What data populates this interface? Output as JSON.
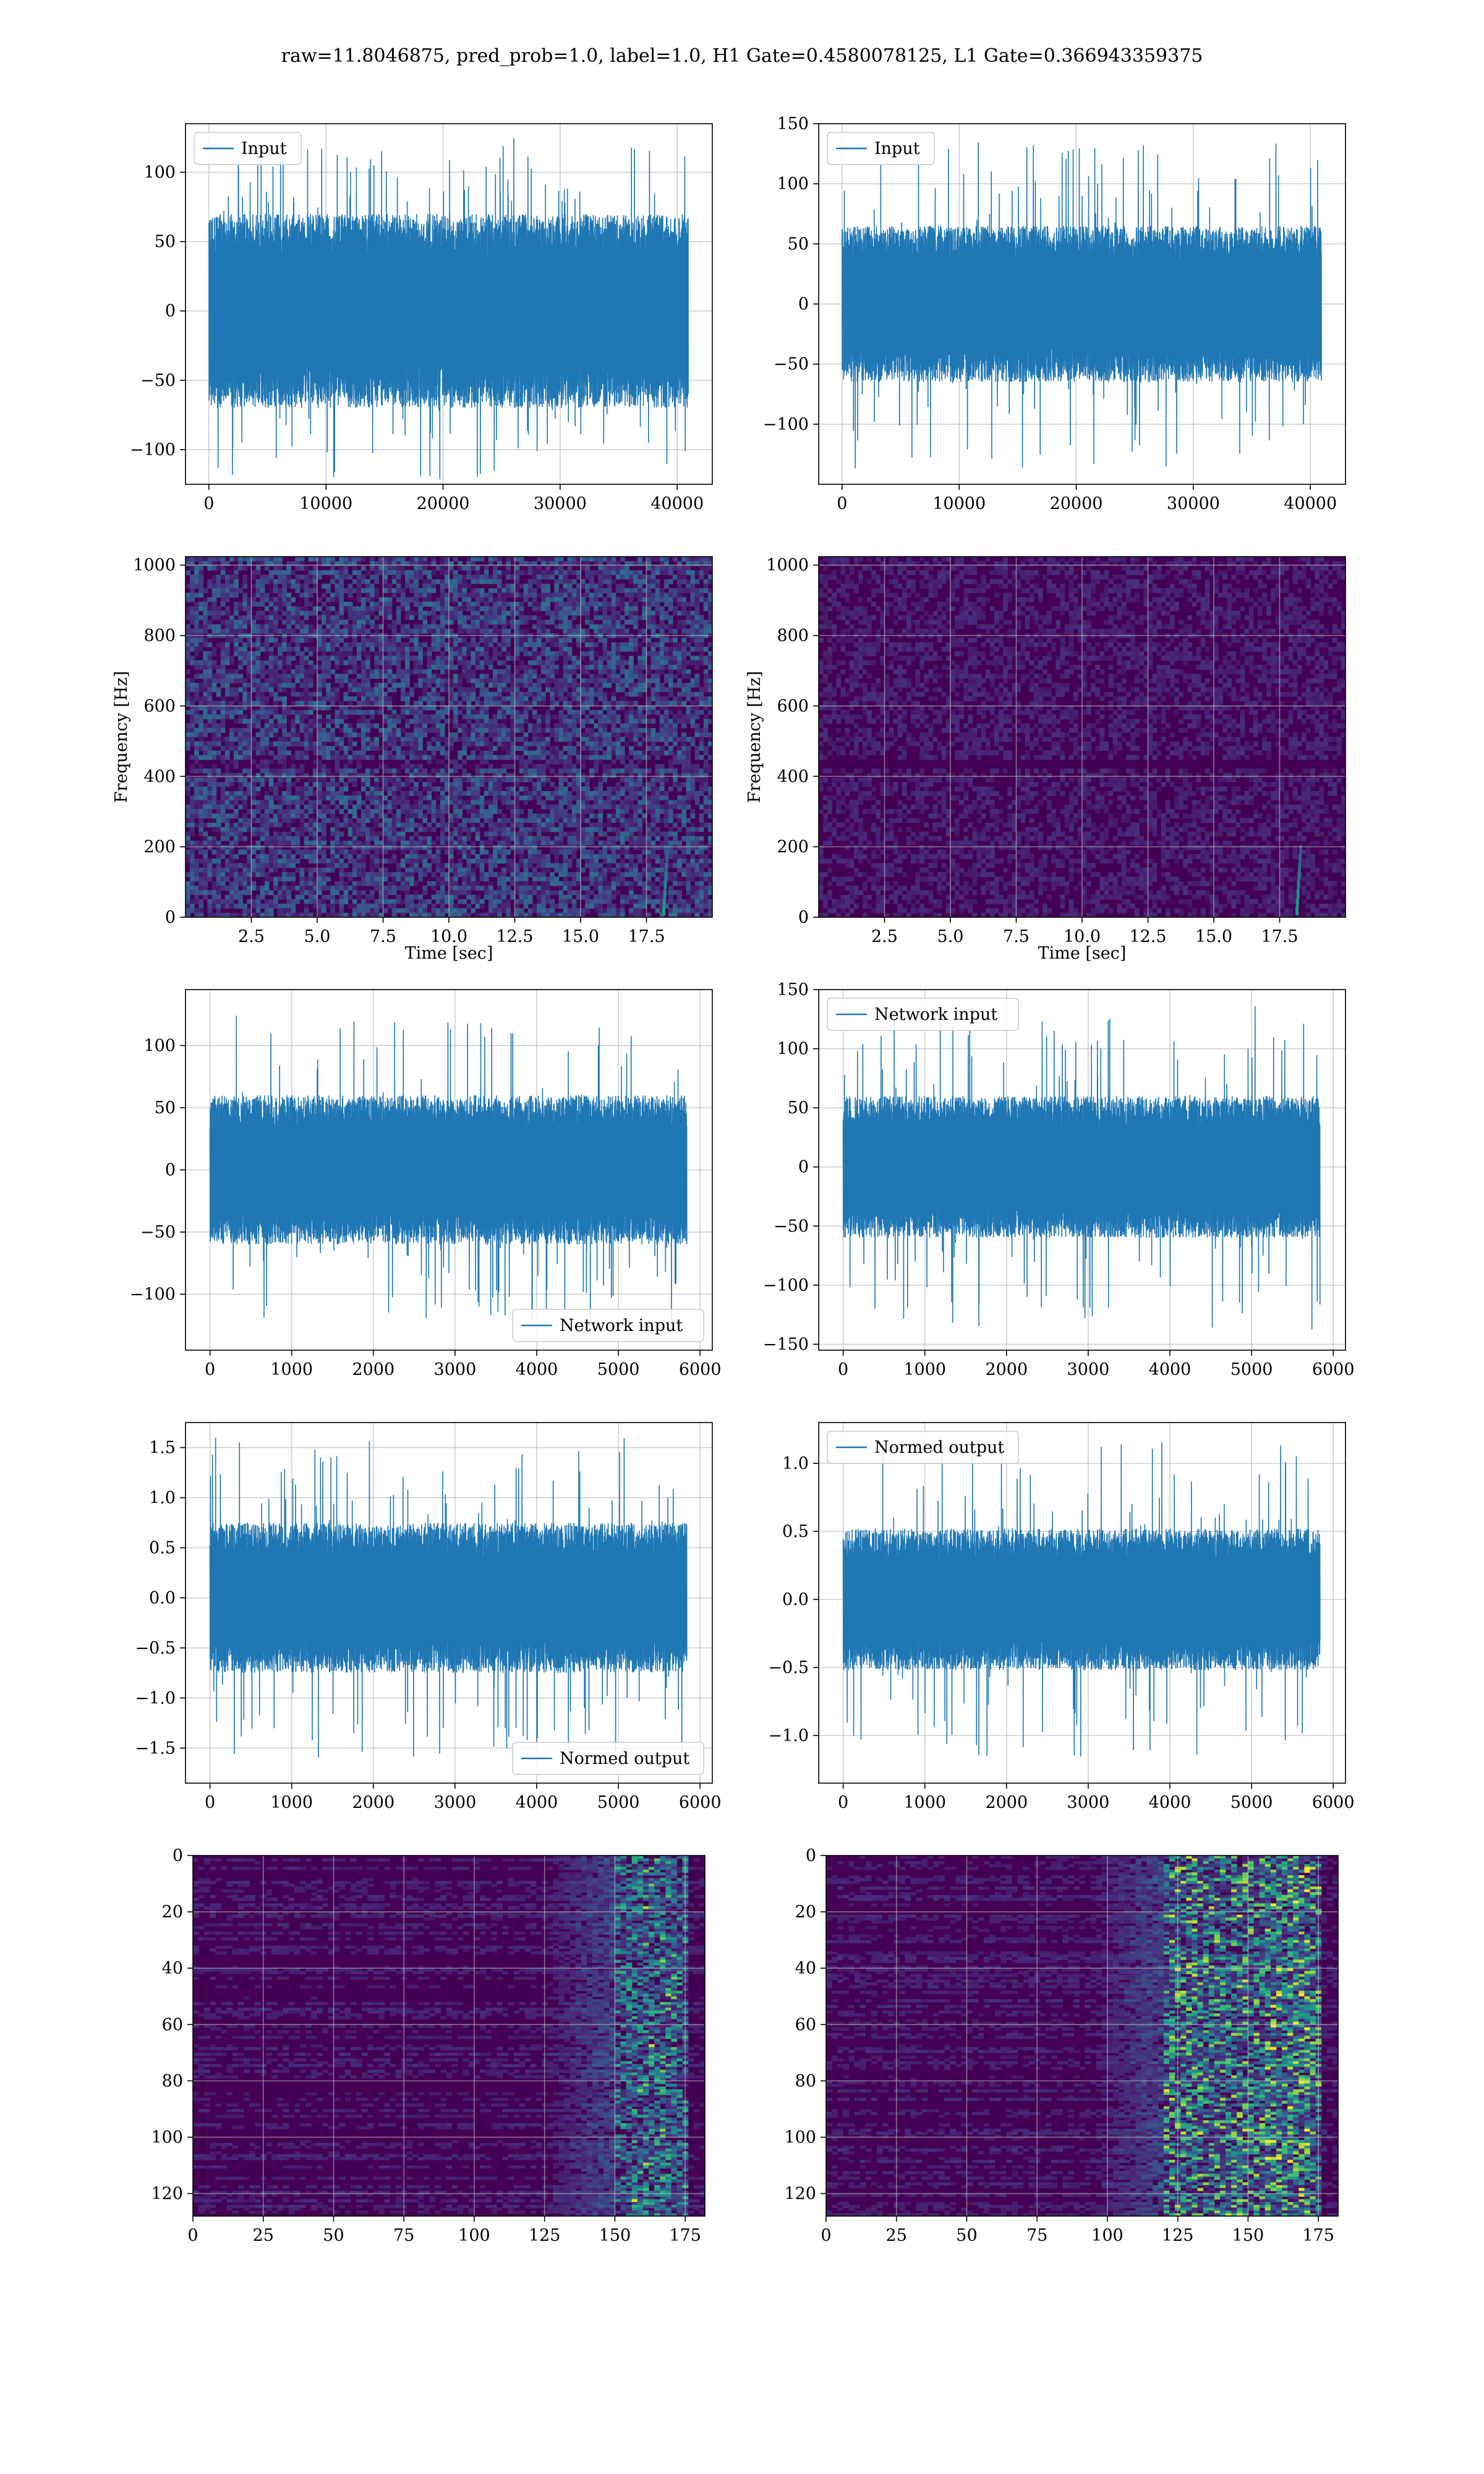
{
  "figure": {
    "title": "raw=11.8046875, pred_prob=1.0, label=1.0, H1 Gate=0.4580078125, L1 Gate=0.366943359375"
  },
  "colors": {
    "line": "#1f77b4",
    "grid": "#b0b0b0",
    "viridis_low": "#440154",
    "viridis_high": "#fde725"
  },
  "chart_data": [
    {
      "id": "input-h1",
      "type": "line",
      "series": [
        {
          "name": "Input",
          "n_points": 40960,
          "amplitude": 70,
          "peak": 125
        }
      ],
      "xlim": [
        -2000,
        43000
      ],
      "ylim": [
        -125,
        135
      ],
      "xticks": [
        0,
        10000,
        20000,
        30000,
        40000
      ],
      "yticks": [
        -100,
        -50,
        0,
        50,
        100
      ],
      "legend": "upper left",
      "grid": true
    },
    {
      "id": "input-l1",
      "type": "line",
      "series": [
        {
          "name": "Input",
          "n_points": 40960,
          "amplitude": 65,
          "peak": 138
        }
      ],
      "xlim": [
        -2000,
        43000
      ],
      "ylim": [
        -150,
        150
      ],
      "xticks": [
        0,
        10000,
        20000,
        30000,
        40000
      ],
      "yticks": [
        -100,
        -50,
        0,
        50,
        100,
        150
      ],
      "legend": "upper left",
      "grid": true
    },
    {
      "id": "spectrogram-h1",
      "type": "heatmap",
      "xlabel": "Time [sec]",
      "ylabel": "Frequency [Hz]",
      "xlim": [
        0,
        20
      ],
      "ylim": [
        0,
        1024
      ],
      "xticks": [
        2.5,
        5.0,
        7.5,
        10.0,
        12.5,
        15.0,
        17.5
      ],
      "yticks": [
        0,
        200,
        400,
        600,
        800,
        1000
      ],
      "colormap": "viridis",
      "intensity": 0.35,
      "grid": true
    },
    {
      "id": "spectrogram-l1",
      "type": "heatmap",
      "xlabel": "Time [sec]",
      "ylabel": "Frequency [Hz]",
      "xlim": [
        0,
        20
      ],
      "ylim": [
        0,
        1024
      ],
      "xticks": [
        2.5,
        5.0,
        7.5,
        10.0,
        12.5,
        15.0,
        17.5
      ],
      "yticks": [
        0,
        200,
        400,
        600,
        800,
        1000
      ],
      "colormap": "viridis",
      "intensity": 0.12,
      "grid": true
    },
    {
      "id": "network-input-h1",
      "type": "line",
      "series": [
        {
          "name": "Network input",
          "n_points": 5840,
          "amplitude": 60,
          "peak": 125
        }
      ],
      "xlim": [
        -300,
        6150
      ],
      "ylim": [
        -145,
        145
      ],
      "xticks": [
        0,
        1000,
        2000,
        3000,
        4000,
        5000,
        6000
      ],
      "yticks": [
        -100,
        -50,
        0,
        50,
        100
      ],
      "legend": "lower right",
      "grid": true
    },
    {
      "id": "network-input-l1",
      "type": "line",
      "series": [
        {
          "name": "Network input",
          "n_points": 5840,
          "amplitude": 60,
          "peak": 138
        }
      ],
      "xlim": [
        -300,
        6150
      ],
      "ylim": [
        -155,
        150
      ],
      "xticks": [
        0,
        1000,
        2000,
        3000,
        4000,
        5000,
        6000
      ],
      "yticks": [
        -150,
        -100,
        -50,
        0,
        50,
        100,
        150
      ],
      "legend": "upper left",
      "grid": true
    },
    {
      "id": "normed-output-h1",
      "type": "line",
      "series": [
        {
          "name": "Normed output",
          "n_points": 5840,
          "amplitude": 0.75,
          "peak": 1.6
        }
      ],
      "xlim": [
        -300,
        6150
      ],
      "ylim": [
        -1.85,
        1.75
      ],
      "xticks": [
        0,
        1000,
        2000,
        3000,
        4000,
        5000,
        6000
      ],
      "yticks": [
        -1.5,
        -1.0,
        -0.5,
        0.0,
        0.5,
        1.0,
        1.5
      ],
      "legend": "lower right",
      "grid": true
    },
    {
      "id": "normed-output-l1",
      "type": "line",
      "series": [
        {
          "name": "Normed output",
          "n_points": 5840,
          "amplitude": 0.52,
          "peak": 1.2
        }
      ],
      "xlim": [
        -300,
        6150
      ],
      "ylim": [
        -1.35,
        1.3
      ],
      "xticks": [
        0,
        1000,
        2000,
        3000,
        4000,
        5000,
        6000
      ],
      "yticks": [
        -1.0,
        -0.5,
        0.0,
        0.5,
        1.0
      ],
      "legend": "upper left",
      "grid": true
    },
    {
      "id": "feature-map-h1",
      "type": "heatmap",
      "xlim": [
        0,
        182
      ],
      "ylim": [
        128,
        0
      ],
      "xticks": [
        0,
        25,
        50,
        75,
        100,
        125,
        150,
        175
      ],
      "yticks": [
        0,
        20,
        40,
        60,
        80,
        100,
        120
      ],
      "colormap": "viridis",
      "hot_band": [
        150,
        175
      ],
      "intensity": 0.6,
      "grid": true
    },
    {
      "id": "feature-map-l1",
      "type": "heatmap",
      "xlim": [
        0,
        182
      ],
      "ylim": [
        128,
        0
      ],
      "xticks": [
        0,
        25,
        50,
        75,
        100,
        125,
        150,
        175
      ],
      "yticks": [
        0,
        20,
        40,
        60,
        80,
        100,
        120
      ],
      "colormap": "viridis",
      "hot_band": [
        120,
        175
      ],
      "intensity": 0.85,
      "grid": true
    }
  ]
}
